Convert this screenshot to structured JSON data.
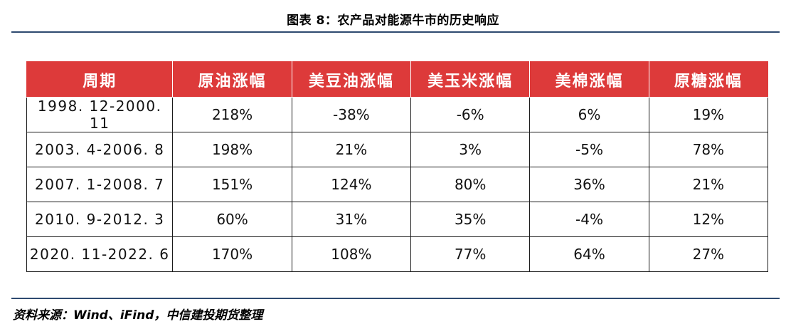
{
  "title": "图表 8：农产品对能源牛市的历史响应",
  "table": {
    "headers": [
      "周期",
      "原油涨幅",
      "美豆油涨幅",
      "美玉米涨幅",
      "美棉涨幅",
      "原糖涨幅"
    ],
    "rows": [
      [
        "1998. 12-2000. 11",
        "218%",
        "-38%",
        "-6%",
        "6%",
        "19%"
      ],
      [
        "2003. 4-2006. 8",
        "198%",
        "21%",
        "3%",
        "-5%",
        "78%"
      ],
      [
        "2007. 1-2008. 7",
        "151%",
        "124%",
        "80%",
        "36%",
        "21%"
      ],
      [
        "2010. 9-2012. 3",
        "60%",
        "31%",
        "35%",
        "-4%",
        "12%"
      ],
      [
        "2020. 11-2022. 6",
        "170%",
        "108%",
        "77%",
        "64%",
        "27%"
      ]
    ]
  },
  "source": "资料来源：Wind、iFind，中信建投期货整理",
  "colors": {
    "header_bg": "#dd3a3a",
    "rule": "#2e4a70"
  }
}
